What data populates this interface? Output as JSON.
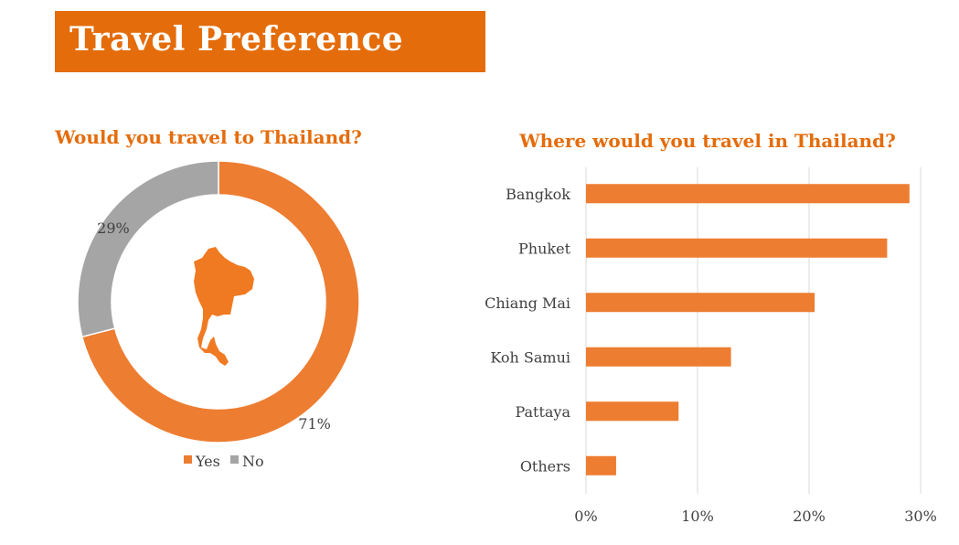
{
  "header": {
    "title": "Travel Preference"
  },
  "colors": {
    "accent": "#E46C0A",
    "orange": "#ED7D31",
    "gray": "#A5A5A5",
    "grid": "#D9D9D9",
    "text": "#404040"
  },
  "chart_data": [
    {
      "type": "pie",
      "variant": "donut",
      "title": "Would you travel to Thailand?",
      "categories": [
        "Yes",
        "No"
      ],
      "values": [
        71,
        29
      ],
      "data_labels": [
        "71%",
        "29%"
      ],
      "legend": {
        "position": "bottom",
        "entries": [
          "Yes",
          "No"
        ]
      },
      "center_icon": "thailand-map-icon"
    },
    {
      "type": "bar",
      "orientation": "horizontal",
      "title": "Where would you travel in Thailand?",
      "categories": [
        "Bangkok",
        "Phuket",
        "Chiang Mai",
        "Koh Samui",
        "Pattaya",
        "Others"
      ],
      "values": [
        29,
        27,
        20.5,
        13,
        8.3,
        2.7
      ],
      "xlim": [
        0,
        30
      ],
      "x_ticks": [
        "0%",
        "10%",
        "20%",
        "30%"
      ],
      "grid": true
    }
  ]
}
